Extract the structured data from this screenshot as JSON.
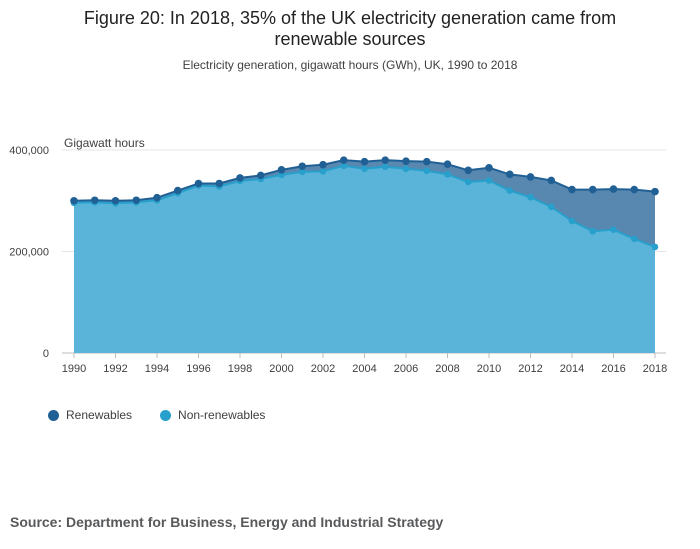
{
  "chart_data": {
    "type": "area",
    "title": "Figure 20: In 2018, 35% of the UK electricity generation came from renewable sources",
    "subtitle": "Electricity generation, gigawatt hours (GWh), UK, 1990 to 2018",
    "ylabel": "Gigawatt hours",
    "xlabel": "",
    "ylim": [
      0,
      400000
    ],
    "yticks": [
      0,
      200000,
      400000
    ],
    "ytick_labels": [
      "0",
      "200,000",
      "400,000"
    ],
    "xtick_labels": [
      "1990",
      "1992",
      "1994",
      "1996",
      "1998",
      "2000",
      "2002",
      "2004",
      "2006",
      "2008",
      "2010",
      "2012",
      "2014",
      "2016",
      "2018"
    ],
    "x": [
      1990,
      1991,
      1992,
      1993,
      1994,
      1995,
      1996,
      1997,
      1998,
      1999,
      2000,
      2001,
      2002,
      2003,
      2004,
      2005,
      2006,
      2007,
      2008,
      2009,
      2010,
      2011,
      2012,
      2013,
      2014,
      2015,
      2016,
      2017,
      2018
    ],
    "series": [
      {
        "name": "Renewables",
        "color": "#206095",
        "values": [
          300000,
          301000,
          300000,
          301000,
          306000,
          320000,
          334000,
          334000,
          345000,
          350000,
          361000,
          368000,
          371000,
          380000,
          377000,
          380000,
          378000,
          377000,
          372000,
          360000,
          365000,
          352000,
          347000,
          340000,
          322000,
          322000,
          323000,
          322000,
          318000
        ]
      },
      {
        "name": "Non-renewables",
        "color": "#27a0cc",
        "values": [
          296000,
          297000,
          295000,
          297000,
          301000,
          315000,
          330000,
          328000,
          339000,
          343000,
          351000,
          357000,
          358000,
          369000,
          363000,
          367000,
          363000,
          359000,
          352000,
          337000,
          340000,
          320000,
          307000,
          288000,
          260000,
          240000,
          243000,
          225000,
          209000
        ]
      }
    ],
    "legend": [
      "Renewables",
      "Non-renewables"
    ]
  },
  "source": "Source: Department for Business, Energy and Industrial Strategy"
}
